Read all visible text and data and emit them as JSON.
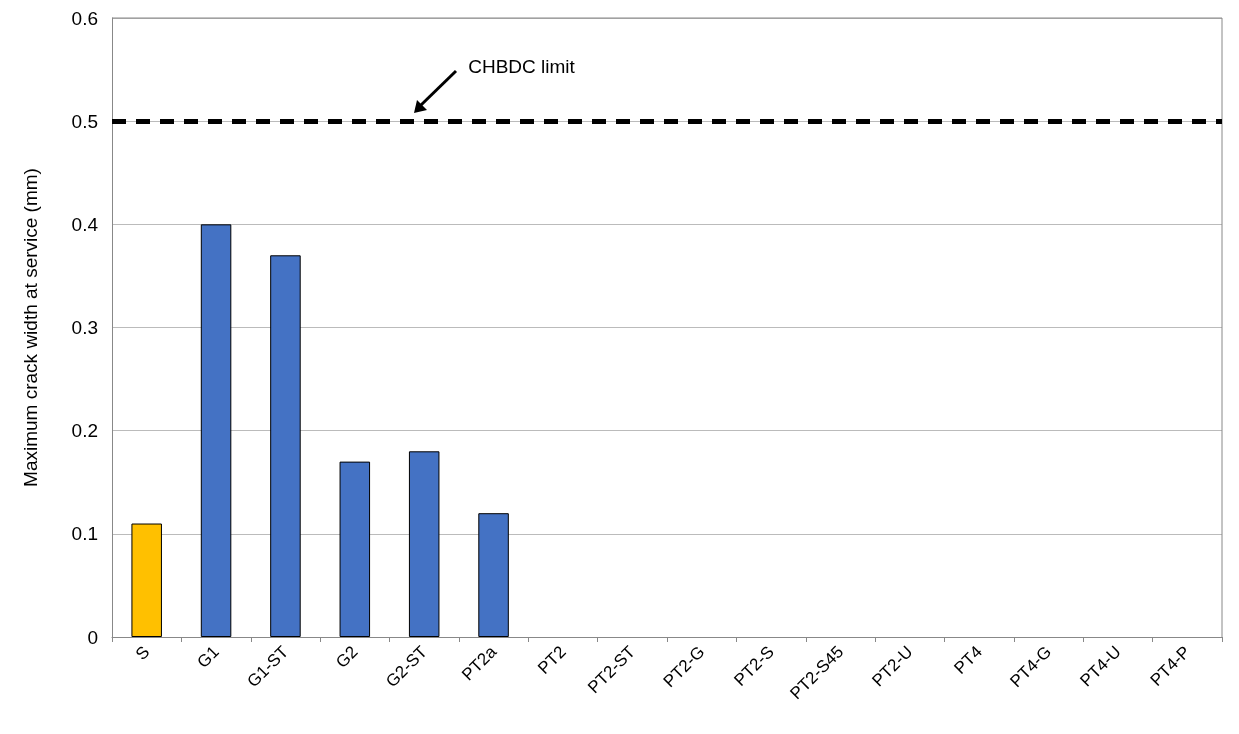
{
  "chart_data": {
    "type": "bar",
    "ylabel": "Maximum crack width at service (mm)",
    "categories": [
      "S",
      "G1",
      "G1-ST",
      "G2",
      "G2-ST",
      "PT2a",
      "PT2",
      "PT2-ST",
      "PT2-G",
      "PT2-S",
      "PT2-S45",
      "PT2-U",
      "PT4",
      "PT4-G",
      "PT4-U",
      "PT4-P"
    ],
    "values": [
      0.11,
      0.4,
      0.37,
      0.17,
      0.18,
      0.12,
      null,
      null,
      null,
      null,
      null,
      null,
      null,
      null,
      null,
      null
    ],
    "colors": [
      "#ffc000",
      "#4472c4",
      "#4472c4",
      "#4472c4",
      "#4472c4",
      "#4472c4",
      null,
      null,
      null,
      null,
      null,
      null,
      null,
      null,
      null,
      null
    ],
    "ylim": [
      0,
      0.6
    ],
    "yticks": [
      0,
      0.1,
      0.2,
      0.3,
      0.4,
      0.5,
      0.6
    ],
    "grid": "y",
    "ref_lines": [
      {
        "axis": "y",
        "value": 0.5,
        "label": "CHBDC limit",
        "color": "#000000",
        "line_style": "dashed"
      }
    ]
  }
}
